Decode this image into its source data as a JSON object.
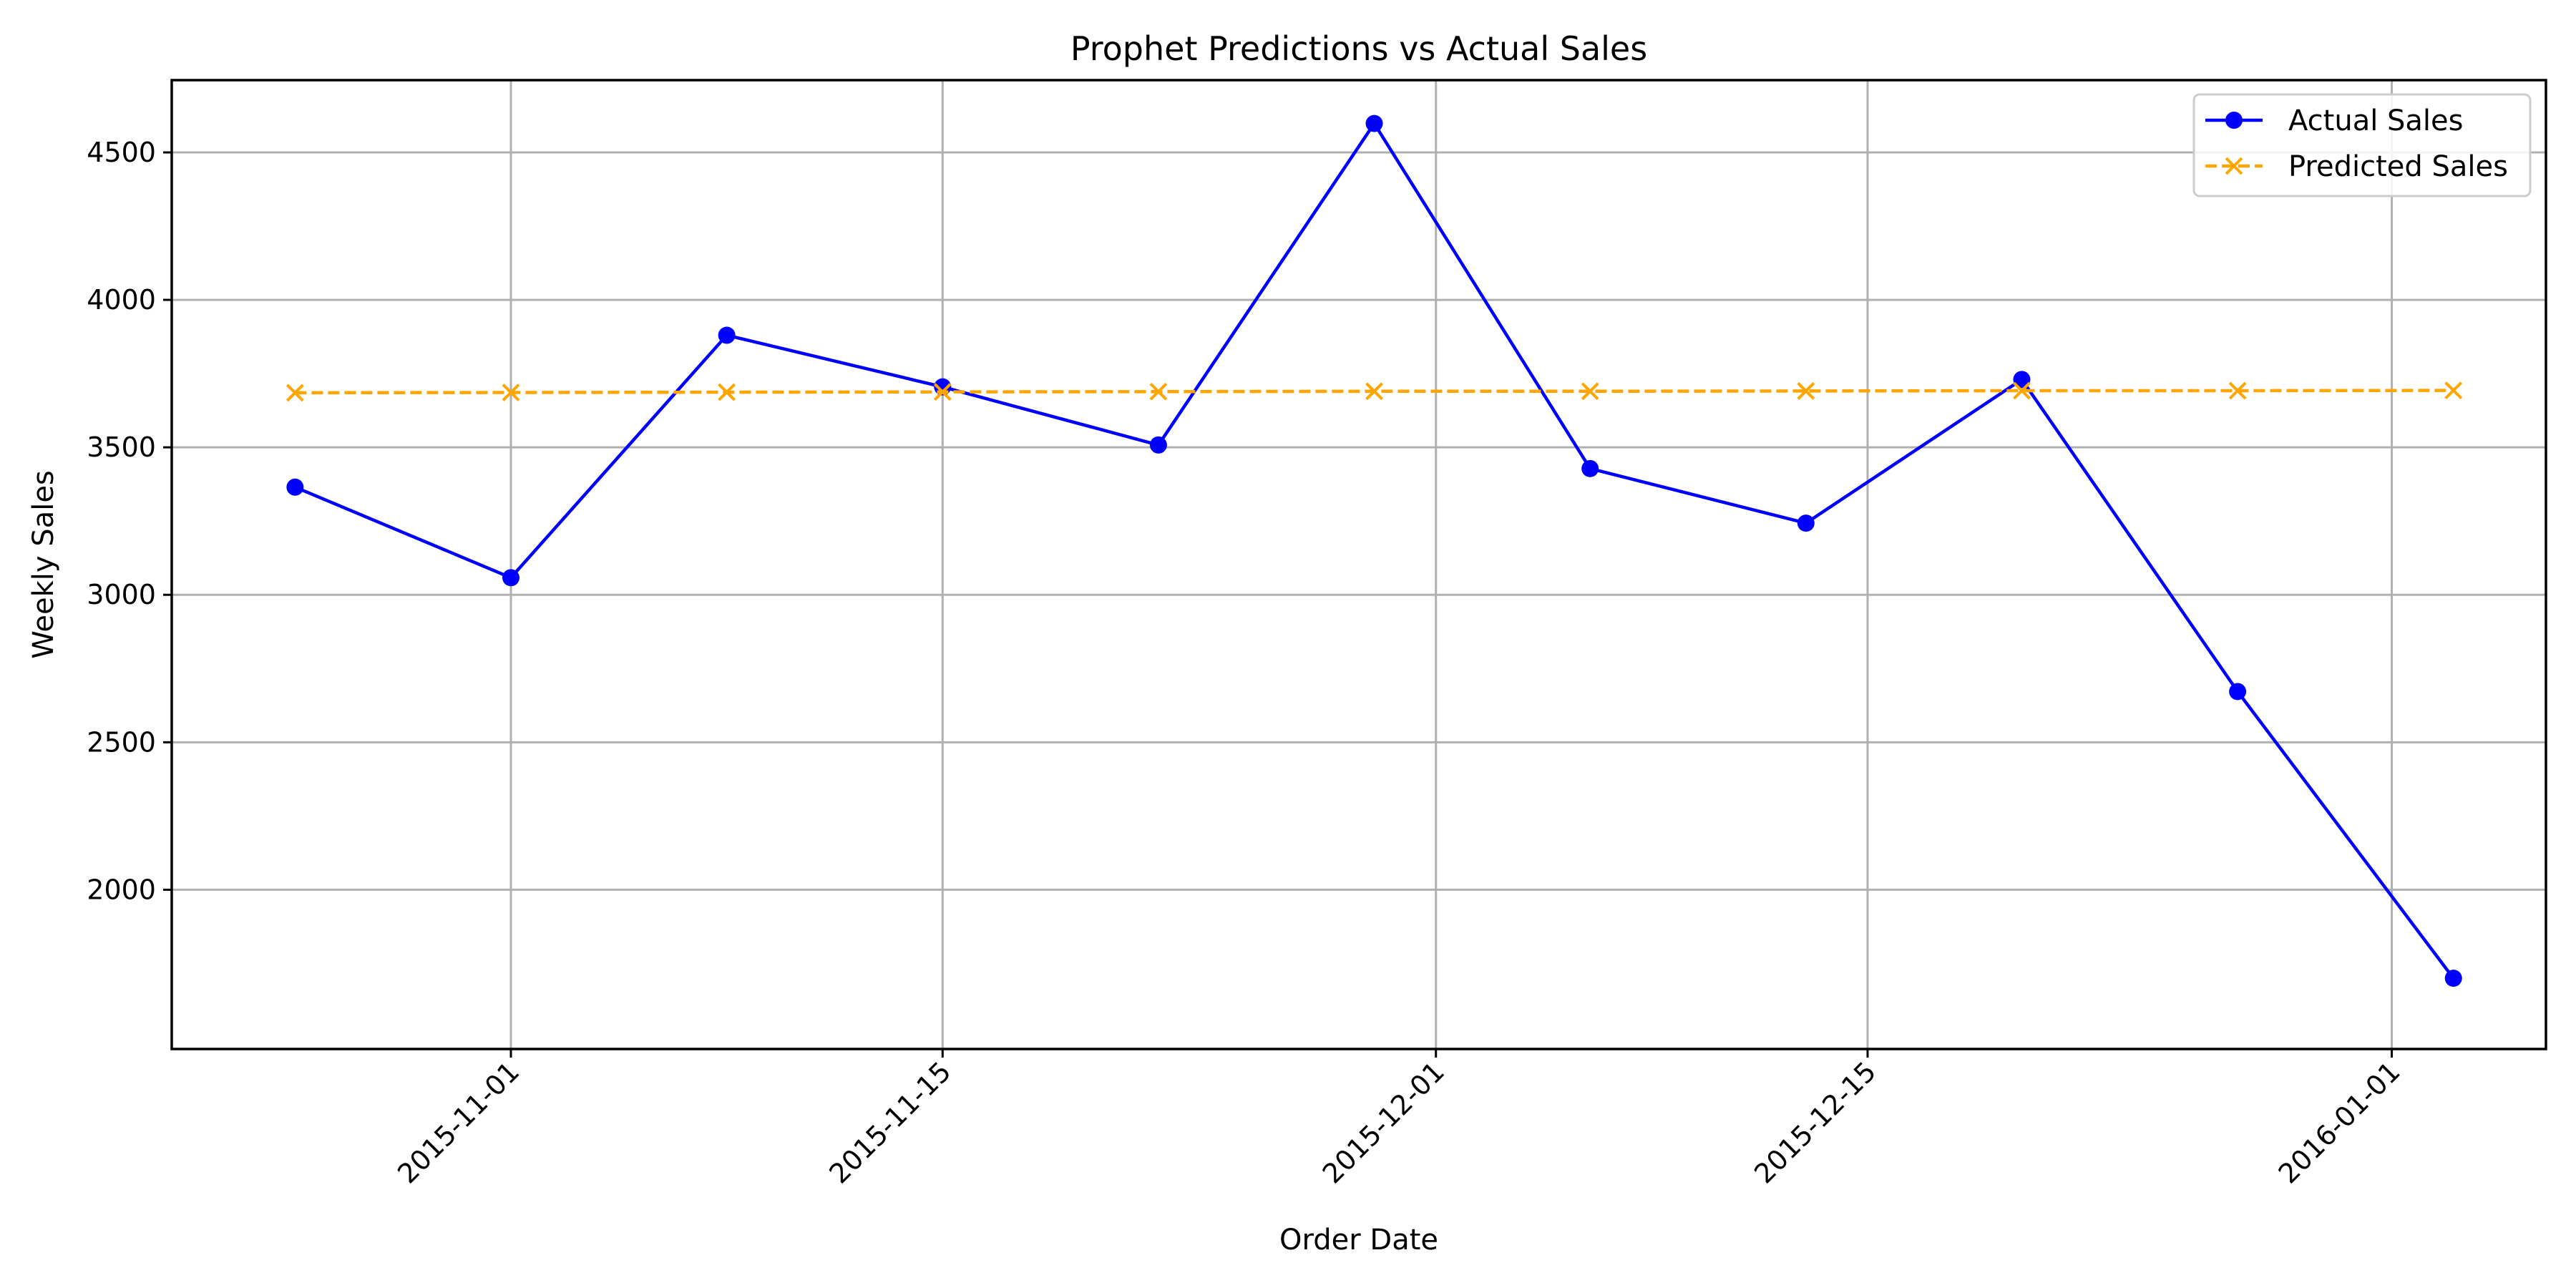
{
  "chart_data": {
    "type": "line",
    "title": "Prophet Predictions vs Actual Sales",
    "xlabel": "Order Date",
    "ylabel": "Weekly Sales",
    "x_type": "date",
    "xlim": [
      "2015-10-21",
      "2016-01-06"
    ],
    "ylim": [
      1460,
      4745
    ],
    "x_ticks": [
      "2015-11-01",
      "2015-11-15",
      "2015-12-01",
      "2015-12-15",
      "2016-01-01"
    ],
    "y_ticks": [
      2000,
      2500,
      3000,
      3500,
      4000,
      4500
    ],
    "grid": true,
    "legend_position": "top-right",
    "x": [
      "2015-10-25",
      "2015-11-01",
      "2015-11-08",
      "2015-11-15",
      "2015-11-22",
      "2015-11-29",
      "2015-12-06",
      "2015-12-13",
      "2015-12-20",
      "2015-12-27",
      "2016-01-03"
    ],
    "series": [
      {
        "name": "Actual Sales",
        "color": "#0000ff",
        "line_style": "solid",
        "marker": "circle",
        "values": [
          3365,
          3058,
          3880,
          3705,
          3508,
          4598,
          3428,
          3243,
          3730,
          2672,
          1700
        ]
      },
      {
        "name": "Predicted Sales",
        "color": "#ffa500",
        "line_style": "dashed",
        "marker": "x",
        "values": [
          3685,
          3686,
          3687,
          3688,
          3689,
          3690,
          3690,
          3691,
          3692,
          3692,
          3693
        ]
      }
    ]
  }
}
